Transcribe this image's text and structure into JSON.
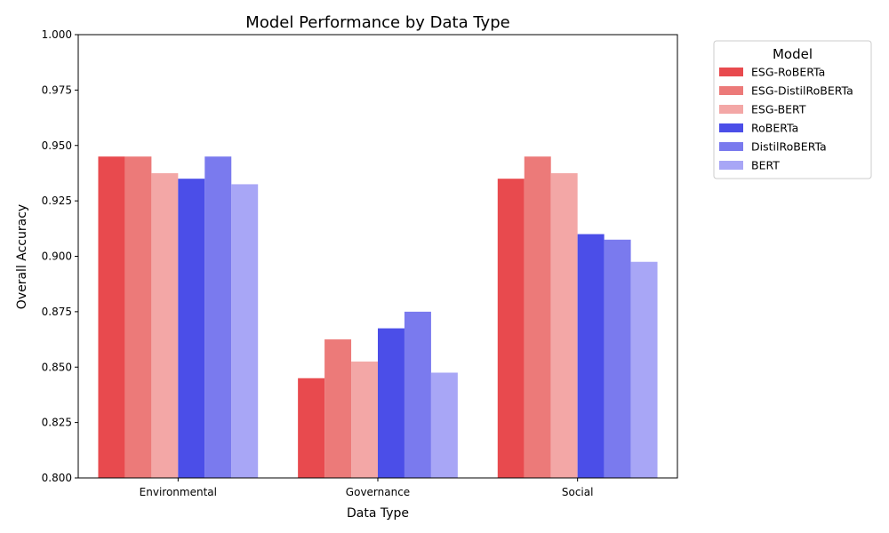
{
  "chart_data": {
    "type": "bar",
    "title": "Model Performance by Data Type",
    "xlabel": "Data Type",
    "ylabel": "Overall Accuracy",
    "ylim": [
      0.8,
      1.0
    ],
    "yticks": [
      0.8,
      0.825,
      0.85,
      0.875,
      0.9,
      0.925,
      0.95,
      0.975,
      1.0
    ],
    "ytick_labels": [
      "0.800",
      "0.825",
      "0.850",
      "0.875",
      "0.900",
      "0.925",
      "0.950",
      "0.975",
      "1.000"
    ],
    "categories": [
      "Environmental",
      "Governance",
      "Social"
    ],
    "grid": false,
    "legend": {
      "title": "Model",
      "placement": "outside-top-right"
    },
    "series": [
      {
        "name": "ESG-RoBERTa",
        "color": "#e84a4e",
        "values": [
          0.945,
          0.845,
          0.935
        ]
      },
      {
        "name": "ESG-DistilRoBERTa",
        "color": "#ec7a79",
        "values": [
          0.945,
          0.8625,
          0.945
        ]
      },
      {
        "name": "ESG-BERT",
        "color": "#f3a7a6",
        "values": [
          0.9375,
          0.8525,
          0.9375
        ]
      },
      {
        "name": "RoBERTa",
        "color": "#4b4ee8",
        "values": [
          0.935,
          0.8675,
          0.91
        ]
      },
      {
        "name": "DistilRoBERTa",
        "color": "#7a7aee",
        "values": [
          0.945,
          0.875,
          0.9075
        ]
      },
      {
        "name": "BERT",
        "color": "#a8a6f6",
        "values": [
          0.9325,
          0.8475,
          0.8975
        ]
      }
    ]
  }
}
